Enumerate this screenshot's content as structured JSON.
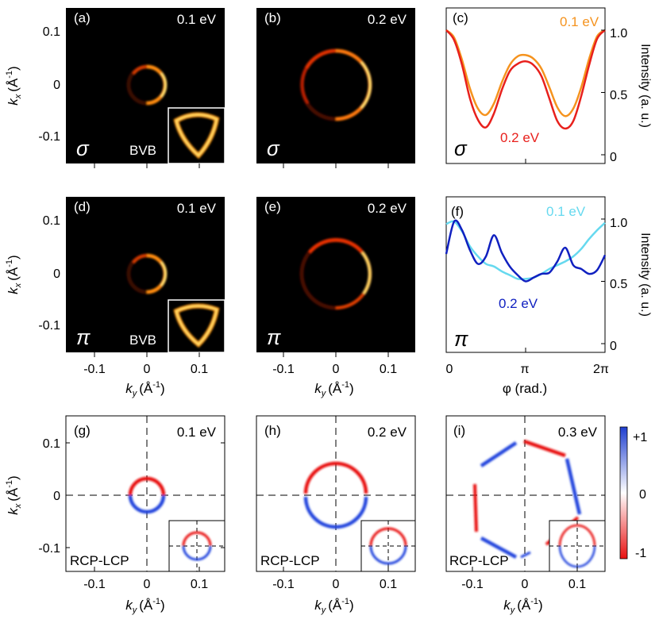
{
  "figure": {
    "labels": {
      "kx": "k",
      "kx_sub": "x",
      "ky": "k",
      "ky_sub": "y",
      "unit": "(Å",
      "unit_exp": "-1",
      "unit_close": ")",
      "phi": "φ (rad.)",
      "intensity": "Intensity (a. u.)"
    },
    "ticks": {
      "k_y_axis": [
        "0.1",
        "0",
        "-0.1"
      ],
      "k_x_axis": [
        "-0.1",
        "0",
        "0.1"
      ],
      "phi_axis": [
        "0",
        "π",
        "2π"
      ],
      "intensity_axis": [
        "1.0",
        "0.5",
        "0"
      ],
      "colorbar": [
        "+1",
        "0",
        "-1"
      ]
    },
    "panels": [
      {
        "id": "a",
        "letter": "(a)",
        "energy": "0.1 eV",
        "symbol": "σ",
        "inset_label": "BVB"
      },
      {
        "id": "b",
        "letter": "(b)",
        "energy": "0.2 eV",
        "symbol": "σ"
      },
      {
        "id": "c",
        "letter": "(c)",
        "symbol": "σ",
        "legend_top": "0.1 eV",
        "legend_bottom": "0.2 eV"
      },
      {
        "id": "d",
        "letter": "(d)",
        "energy": "0.1 eV",
        "symbol": "π",
        "inset_label": "BVB"
      },
      {
        "id": "e",
        "letter": "(e)",
        "energy": "0.2 eV",
        "symbol": "π"
      },
      {
        "id": "f",
        "letter": "(f)",
        "symbol": "π",
        "legend_top": "0.1 eV",
        "legend_bottom": "0.2 eV"
      },
      {
        "id": "g",
        "letter": "(g)",
        "energy": "0.1 eV",
        "inset_label": "RCP-LCP"
      },
      {
        "id": "h",
        "letter": "(h)",
        "energy": "0.2 eV",
        "inset_label": "RCP-LCP"
      },
      {
        "id": "i",
        "letter": "(i)",
        "energy": "0.3 eV",
        "inset_label": "RCP-LCP"
      }
    ],
    "colors": {
      "orange": "#f5931e",
      "red": "#e8201c",
      "light_blue": "#66d9ef",
      "dark_blue": "#1020c0",
      "dichroism_pos": "#2244dd",
      "dichroism_neg": "#e81010"
    }
  },
  "chart_data": [
    {
      "type": "line",
      "panel": "c",
      "xlabel": "",
      "ylabel": "Intensity (a. u.)",
      "xlim": [
        0,
        6.283
      ],
      "ylim": [
        0,
        1.1
      ],
      "x": [
        0,
        0.314,
        0.628,
        0.942,
        1.257,
        1.571,
        1.885,
        2.199,
        2.513,
        2.827,
        3.142,
        3.456,
        3.77,
        4.084,
        4.398,
        4.712,
        5.027,
        5.341,
        5.655,
        5.969,
        6.283
      ],
      "series": [
        {
          "name": "0.1 eV",
          "values": [
            1.0,
            0.94,
            0.76,
            0.53,
            0.37,
            0.32,
            0.41,
            0.58,
            0.72,
            0.79,
            0.8,
            0.77,
            0.69,
            0.54,
            0.38,
            0.31,
            0.37,
            0.54,
            0.77,
            0.95,
            1.0
          ]
        },
        {
          "name": "0.2 eV",
          "values": [
            1.0,
            0.92,
            0.72,
            0.45,
            0.28,
            0.22,
            0.33,
            0.52,
            0.67,
            0.73,
            0.75,
            0.72,
            0.63,
            0.45,
            0.27,
            0.21,
            0.27,
            0.47,
            0.72,
            0.93,
            1.0
          ]
        }
      ]
    },
    {
      "type": "line",
      "panel": "f",
      "xlabel": "φ (rad.)",
      "ylabel": "Intensity (a. u.)",
      "xlim": [
        0,
        6.283
      ],
      "ylim": [
        0,
        1.1
      ],
      "x": [
        0,
        0.314,
        0.628,
        0.942,
        1.257,
        1.571,
        1.885,
        2.199,
        2.513,
        2.827,
        3.142,
        3.456,
        3.77,
        4.084,
        4.398,
        4.712,
        5.027,
        5.341,
        5.655,
        5.969,
        6.283
      ],
      "series": [
        {
          "name": "0.1 eV",
          "values": [
            0.96,
            0.98,
            0.9,
            0.78,
            0.7,
            0.64,
            0.62,
            0.58,
            0.55,
            0.52,
            0.52,
            0.53,
            0.56,
            0.6,
            0.63,
            0.66,
            0.7,
            0.76,
            0.84,
            0.91,
            0.97
          ]
        },
        {
          "name": "0.2 eV",
          "values": [
            0.72,
            0.98,
            0.91,
            0.75,
            0.64,
            0.7,
            0.87,
            0.73,
            0.62,
            0.55,
            0.5,
            0.53,
            0.56,
            0.57,
            0.66,
            0.77,
            0.63,
            0.6,
            0.56,
            0.59,
            0.71
          ]
        }
      ]
    }
  ]
}
